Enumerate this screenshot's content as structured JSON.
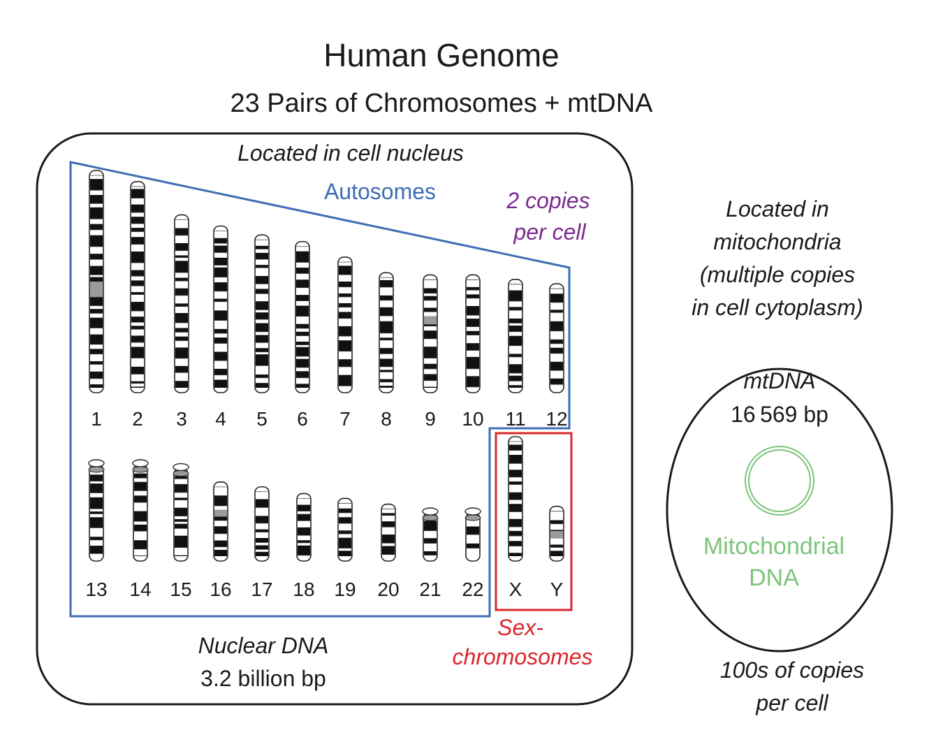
{
  "title": "Human Genome",
  "subtitle": "23 Pairs of Chromosomes + mtDNA",
  "nucleus": {
    "location": "Located in cell nucleus",
    "autosomes_label": "Autosomes",
    "copies_line1": "2 copies",
    "copies_line2": "per cell",
    "sex_line1": "Sex-",
    "sex_line2": "chromosomes",
    "dna_name": "Nuclear DNA",
    "dna_size": "3.2 billion bp"
  },
  "mito": {
    "location_lines": [
      "Located in",
      "mitochondria",
      "(multiple copies",
      "in cell cytoplasm)"
    ],
    "name": "mtDNA",
    "size": "16 569 bp",
    "label_line1": "Mitochondrial",
    "label_line2": "DNA",
    "copies_line1": "100s of copies",
    "copies_line2": "per cell"
  },
  "colors": {
    "autosome_outline": "#3e6db4",
    "sex_outline": "#d9262b",
    "copies_text": "#7a2a8e",
    "mito": "#7cc47a",
    "text": "#1a1a1a"
  },
  "chromosomes": {
    "row1": [
      {
        "label": "1",
        "len": 100
      },
      {
        "label": "2",
        "len": 95
      },
      {
        "label": "3",
        "len": 80
      },
      {
        "label": "4",
        "len": 75
      },
      {
        "label": "5",
        "len": 71
      },
      {
        "label": "6",
        "len": 68
      },
      {
        "label": "7",
        "len": 61
      },
      {
        "label": "8",
        "len": 54
      },
      {
        "label": "9",
        "len": 53
      },
      {
        "label": "10",
        "len": 53
      },
      {
        "label": "11",
        "len": 51
      },
      {
        "label": "12",
        "len": 49
      }
    ],
    "row2": [
      {
        "label": "13",
        "len": 100
      },
      {
        "label": "14",
        "len": 100
      },
      {
        "label": "15",
        "len": 96
      },
      {
        "label": "16",
        "len": 82
      },
      {
        "label": "17",
        "len": 77
      },
      {
        "label": "18",
        "len": 70
      },
      {
        "label": "19",
        "len": 65
      },
      {
        "label": "20",
        "len": 59
      },
      {
        "label": "21",
        "len": 50
      },
      {
        "label": "22",
        "len": 50
      }
    ],
    "sex": [
      {
        "label": "X",
        "len": 100
      },
      {
        "label": "Y",
        "len": 44
      }
    ]
  }
}
